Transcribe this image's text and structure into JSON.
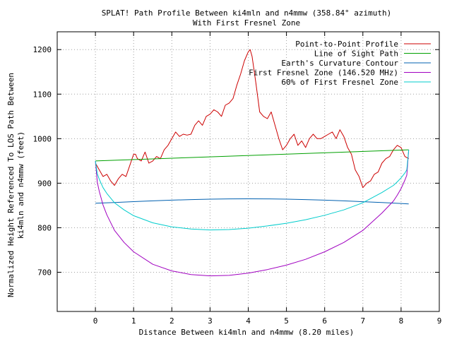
{
  "chart_data": {
    "type": "line",
    "title": "SPLAT! Path Profile Between ki4mln and n4mmw (358.84° azimuth)",
    "subtitle": "With First Fresnel Zone",
    "xlabel": "Distance Between ki4mln and n4mmw (8.20 miles)",
    "ylabel_line1": "Normalized Height Referenced To LOS Path Between",
    "ylabel_line2": "ki4mln and n4mmw (feet)",
    "xlim": [
      -1,
      9
    ],
    "ylim": [
      612,
      1240
    ],
    "xticks": [
      "0",
      "1",
      "2",
      "3",
      "4",
      "5",
      "6",
      "7",
      "8",
      "9"
    ],
    "yticks": [
      "700",
      "800",
      "900",
      "1000",
      "1100",
      "1200"
    ],
    "grid": true,
    "legend_position": "top-right",
    "series": [
      {
        "name": "Point-to-Point Profile",
        "color": "#cc0000",
        "x": [
          0,
          0.1,
          0.2,
          0.3,
          0.4,
          0.5,
          0.6,
          0.7,
          0.8,
          0.9,
          1.0,
          1.05,
          1.1,
          1.2,
          1.3,
          1.4,
          1.5,
          1.6,
          1.7,
          1.8,
          1.9,
          2.0,
          2.1,
          2.2,
          2.3,
          2.4,
          2.5,
          2.6,
          2.7,
          2.8,
          2.9,
          3.0,
          3.1,
          3.2,
          3.3,
          3.4,
          3.5,
          3.6,
          3.7,
          3.8,
          3.9,
          4.0,
          4.05,
          4.1,
          4.2,
          4.3,
          4.4,
          4.5,
          4.6,
          4.7,
          4.8,
          4.9,
          5.0,
          5.1,
          5.2,
          5.3,
          5.4,
          5.5,
          5.6,
          5.7,
          5.8,
          5.9,
          6.0,
          6.1,
          6.2,
          6.3,
          6.4,
          6.5,
          6.6,
          6.7,
          6.8,
          6.9,
          7.0,
          7.1,
          7.2,
          7.3,
          7.4,
          7.5,
          7.6,
          7.7,
          7.8,
          7.9,
          8.0,
          8.1,
          8.2
        ],
        "y": [
          945,
          930,
          915,
          920,
          905,
          895,
          910,
          920,
          915,
          940,
          965,
          965,
          955,
          950,
          970,
          945,
          950,
          960,
          955,
          975,
          985,
          1000,
          1015,
          1005,
          1010,
          1008,
          1010,
          1030,
          1040,
          1030,
          1050,
          1055,
          1065,
          1060,
          1050,
          1075,
          1080,
          1090,
          1120,
          1145,
          1175,
          1195,
          1200,
          1185,
          1125,
          1060,
          1050,
          1045,
          1060,
          1030,
          1000,
          975,
          985,
          1000,
          1010,
          985,
          995,
          980,
          1000,
          1010,
          1000,
          1000,
          1005,
          1010,
          1015,
          1000,
          1020,
          1005,
          980,
          965,
          930,
          915,
          890,
          900,
          905,
          920,
          925,
          945,
          955,
          960,
          975,
          985,
          980,
          960,
          955
        ]
      },
      {
        "name": "Line of Sight Path",
        "color": "#00a000",
        "x": [
          0,
          8.2
        ],
        "y": [
          950,
          975
        ]
      },
      {
        "name": "Earth's Curvature Contour",
        "color": "#0060b0",
        "x": [
          0,
          0.5,
          1,
          1.5,
          2,
          2.5,
          3,
          3.5,
          4,
          4.5,
          5,
          5.5,
          6,
          6.5,
          7,
          7.5,
          8,
          8.2
        ],
        "y": [
          855,
          856.6,
          858.6,
          860.4,
          862,
          863.2,
          864.2,
          864.8,
          865,
          864.8,
          864.2,
          863.2,
          862,
          860.4,
          858.5,
          856.5,
          854.5,
          853.5
        ]
      },
      {
        "name": "First Fresnel Zone (146.520 MHz)",
        "color": "#a000c0",
        "x": [
          0,
          0.05,
          0.1,
          0.2,
          0.3,
          0.5,
          0.75,
          1,
          1.5,
          2,
          2.5,
          3,
          3.5,
          4,
          4.5,
          5,
          5.5,
          6,
          6.5,
          7,
          7.5,
          7.8,
          7.9,
          8,
          8.1,
          8.15,
          8.2
        ],
        "y": [
          950,
          902,
          882,
          851,
          829,
          794,
          767,
          746,
          718,
          703,
          695,
          692,
          693,
          698,
          706,
          716,
          729,
          746,
          767,
          794,
          833,
          860,
          873,
          888,
          907,
          918,
          975
        ]
      },
      {
        "name": "60% of First Fresnel Zone",
        "color": "#00cccc",
        "x": [
          0,
          0.05,
          0.1,
          0.2,
          0.3,
          0.5,
          0.75,
          1,
          1.5,
          2,
          2.5,
          3,
          3.5,
          4,
          4.5,
          5,
          5.5,
          6,
          6.5,
          7,
          7.5,
          7.8,
          7.9,
          8,
          8.1,
          8.15,
          8.2
        ],
        "y": [
          950,
          921,
          909,
          890,
          877,
          856,
          840,
          827,
          811,
          802,
          797,
          795,
          796,
          799,
          804,
          810,
          818,
          828,
          840,
          856,
          879,
          895,
          903,
          912,
          923,
          930,
          975
        ]
      }
    ]
  }
}
